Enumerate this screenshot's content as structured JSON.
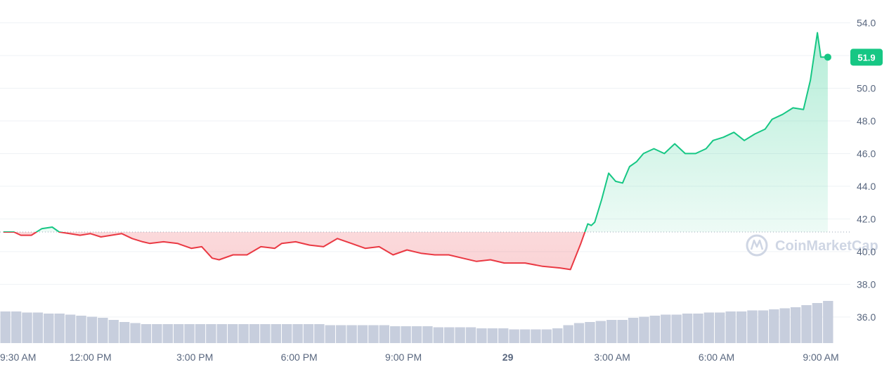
{
  "chart_data": {
    "type": "line",
    "xlabel": "",
    "ylabel": "",
    "ylim": [
      34.4,
      55.4
    ],
    "grid": true,
    "x_tick_labels": [
      "9:30 AM",
      "12:00 PM",
      "3:00 PM",
      "6:00 PM",
      "9:00 PM",
      "29",
      "3:00 AM",
      "6:00 AM",
      "9:00 AM"
    ],
    "x_tick_hours": [
      0,
      2.5,
      5.5,
      8.5,
      11.5,
      14.5,
      17.5,
      20.5,
      23.5
    ],
    "y_ticks": [
      36.0,
      38.0,
      40.0,
      42.0,
      44.0,
      46.0,
      48.0,
      50.0,
      52.0,
      54.0
    ],
    "y_tick_labels": [
      "36.0",
      "38.0",
      "40.0",
      "42.0",
      "44.0",
      "46.0",
      "48.0",
      "50.0",
      "",
      "54.0"
    ],
    "baseline": 41.2,
    "current_price_label": "51.9",
    "current_price": 51.9,
    "colors": {
      "up": "#16c784",
      "down": "#ea3943",
      "volume": "#c7cedd",
      "grid": "#eff2f5"
    },
    "series": [
      {
        "x_hours": [
          0,
          0.3,
          0.5,
          0.8,
          1.1,
          1.4,
          1.6,
          1.9,
          2.2,
          2.5,
          2.8,
          3.1,
          3.4,
          3.7,
          4.0,
          4.2,
          4.6,
          5.0,
          5.4,
          5.7,
          6.0,
          6.2,
          6.6,
          7.0,
          7.4,
          7.8,
          8.0,
          8.4,
          8.8,
          9.2,
          9.6,
          10.0,
          10.4,
          10.8,
          11.2,
          11.6,
          12.0,
          12.4,
          12.8,
          13.2,
          13.6,
          14.0,
          14.4,
          15.0,
          15.5,
          16.0,
          16.3,
          16.6,
          16.8,
          16.9,
          17.0,
          17.2,
          17.4,
          17.6,
          17.8,
          18.0,
          18.2,
          18.4,
          18.7,
          19.0,
          19.3,
          19.6,
          19.9,
          20.2,
          20.4,
          20.7,
          21.0,
          21.3,
          21.6,
          21.9,
          22.1,
          22.4,
          22.7,
          23.0,
          23.2,
          23.4,
          23.5,
          23.6,
          23.7
        ],
        "values": [
          41.2,
          41.2,
          41.0,
          41.0,
          41.4,
          41.5,
          41.2,
          41.1,
          41.0,
          41.1,
          40.9,
          41.0,
          41.1,
          40.8,
          40.6,
          40.5,
          40.6,
          40.5,
          40.2,
          40.3,
          39.6,
          39.5,
          39.8,
          39.8,
          40.3,
          40.2,
          40.5,
          40.6,
          40.4,
          40.3,
          40.8,
          40.5,
          40.2,
          40.3,
          39.8,
          40.1,
          39.9,
          39.8,
          39.8,
          39.6,
          39.4,
          39.5,
          39.3,
          39.3,
          39.1,
          39.0,
          38.9,
          40.5,
          41.7,
          41.6,
          41.8,
          43.2,
          44.8,
          44.3,
          44.2,
          45.2,
          45.5,
          46.0,
          46.3,
          46.0,
          46.6,
          46.0,
          46.0,
          46.3,
          46.8,
          47.0,
          47.3,
          46.8,
          47.2,
          47.5,
          48.1,
          48.4,
          48.8,
          48.7,
          50.5,
          53.4,
          51.9,
          51.9,
          51.9
        ]
      }
    ],
    "volume": [
      30,
      30,
      29,
      29,
      28,
      28,
      27,
      26,
      25,
      24,
      22,
      20,
      19,
      18,
      18,
      18,
      18,
      18,
      18,
      18,
      18,
      18,
      18,
      18,
      18,
      18,
      18,
      18,
      18,
      18,
      17,
      17,
      17,
      17,
      17,
      17,
      16,
      16,
      16,
      16,
      15,
      15,
      15,
      15,
      14,
      14,
      14,
      13,
      13,
      13,
      13,
      14,
      17,
      19,
      20,
      21,
      22,
      22,
      24,
      25,
      26,
      27,
      27,
      28,
      28,
      29,
      29,
      30,
      30,
      31,
      31,
      32,
      33,
      34,
      36,
      38,
      40
    ]
  },
  "watermark": {
    "text": "CoinMarketCap"
  }
}
